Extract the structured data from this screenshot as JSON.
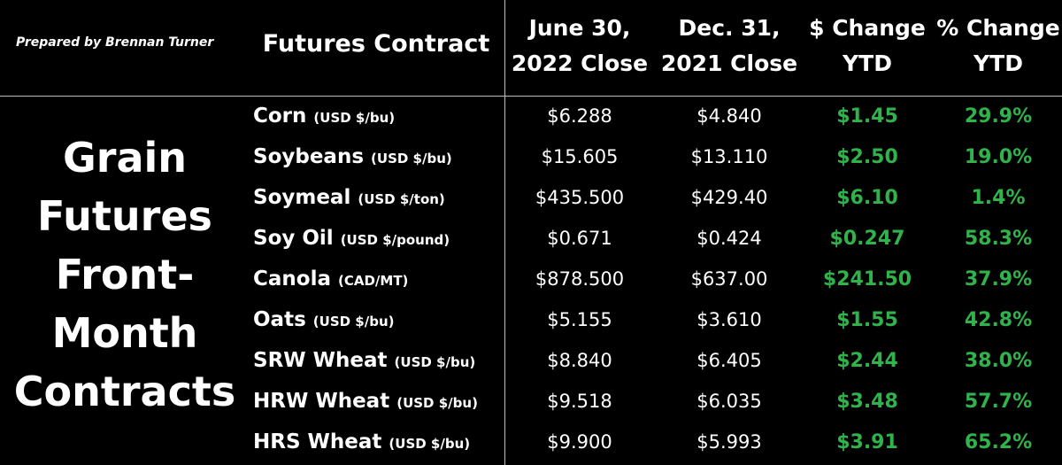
{
  "prepared_by": "Prepared by Brennan Turner",
  "headers": {
    "contract": "Futures Contract",
    "june_line1": "June 30,",
    "june_line2": "2022 Close",
    "dec_line1": "Dec. 31,",
    "dec_line2": "2021 Close",
    "dchg_line1": "$ Change",
    "dchg_line2": "YTD",
    "pchg_line1": "% Change",
    "pchg_line2": "YTD"
  },
  "side_title": [
    "Grain",
    "Futures",
    "Front-",
    "Month",
    "Contracts"
  ],
  "colors": {
    "background": "#000000",
    "text": "#ffffff",
    "positive": "#2fb34a",
    "divider": "#bfbfbf"
  },
  "rows": [
    {
      "name": "Corn",
      "unit": "(USD $/bu)",
      "june": "$6.288",
      "dec": "$4.840",
      "dchg": "$1.45",
      "pchg": "29.9%"
    },
    {
      "name": "Soybeans",
      "unit": "(USD $/bu)",
      "june": "$15.605",
      "dec": "$13.110",
      "dchg": "$2.50",
      "pchg": "19.0%"
    },
    {
      "name": "Soymeal",
      "unit": "(USD $/ton)",
      "june": "$435.500",
      "dec": "$429.40",
      "dchg": "$6.10",
      "pchg": "1.4%"
    },
    {
      "name": "Soy Oil",
      "unit": "(USD $/pound)",
      "june": "$0.671",
      "dec": "$0.424",
      "dchg": "$0.247",
      "pchg": "58.3%"
    },
    {
      "name": "Canola",
      "unit": "(CAD/MT)",
      "june": "$878.500",
      "dec": "$637.00",
      "dchg": "$241.50",
      "pchg": "37.9%"
    },
    {
      "name": "Oats",
      "unit": "(USD $/bu)",
      "june": "$5.155",
      "dec": "$3.610",
      "dchg": "$1.55",
      "pchg": "42.8%"
    },
    {
      "name": "SRW Wheat",
      "unit": "(USD $/bu)",
      "june": "$8.840",
      "dec": "$6.405",
      "dchg": "$2.44",
      "pchg": "38.0%"
    },
    {
      "name": "HRW Wheat",
      "unit": "(USD $/bu)",
      "june": "$9.518",
      "dec": "$6.035",
      "dchg": "$3.48",
      "pchg": "57.7%"
    },
    {
      "name": "HRS Wheat",
      "unit": "(USD $/bu)",
      "june": "$9.900",
      "dec": "$5.993",
      "dchg": "$3.91",
      "pchg": "65.2%"
    }
  ]
}
